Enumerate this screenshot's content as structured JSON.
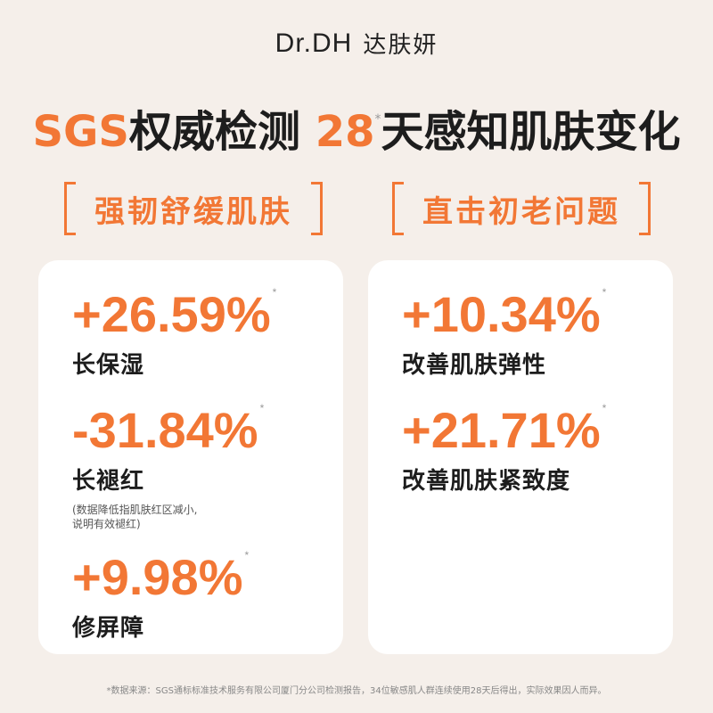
{
  "brand": {
    "logo_en": "Dr.DH",
    "logo_cn": "达肤妍"
  },
  "headline": {
    "part1": "SGS",
    "part2": "权威检测",
    "part3": "28",
    "star": "*",
    "part4": "天感知肌肤变化"
  },
  "left": {
    "title": "强韧舒缓肌肤",
    "stats": [
      {
        "value": "+26.59%",
        "star": "*",
        "label": "长保湿"
      },
      {
        "value": "-31.84%",
        "star": "*",
        "label": "长褪红",
        "note_line1": "(数据降低指肌肤红区减小,",
        "note_line2": "说明有效褪红)"
      },
      {
        "value": "+9.98%",
        "star": "*",
        "label": "修屏障"
      }
    ]
  },
  "right": {
    "title": "直击初老问题",
    "stats": [
      {
        "value": "+10.34%",
        "star": "*",
        "label": "改善肌肤弹性"
      },
      {
        "value": "+21.71%",
        "star": "*",
        "label": "改善肌肤紧致度"
      }
    ]
  },
  "footnote": "*数据来源：SGS通标标准技术服务有限公司厦门分公司检测报告，34位敏感肌人群连续使用28天后得出，实际效果因人而异。",
  "colors": {
    "accent": "#f27735",
    "background": "#f5efea",
    "card": "#ffffff",
    "text": "#1d1d1d"
  }
}
